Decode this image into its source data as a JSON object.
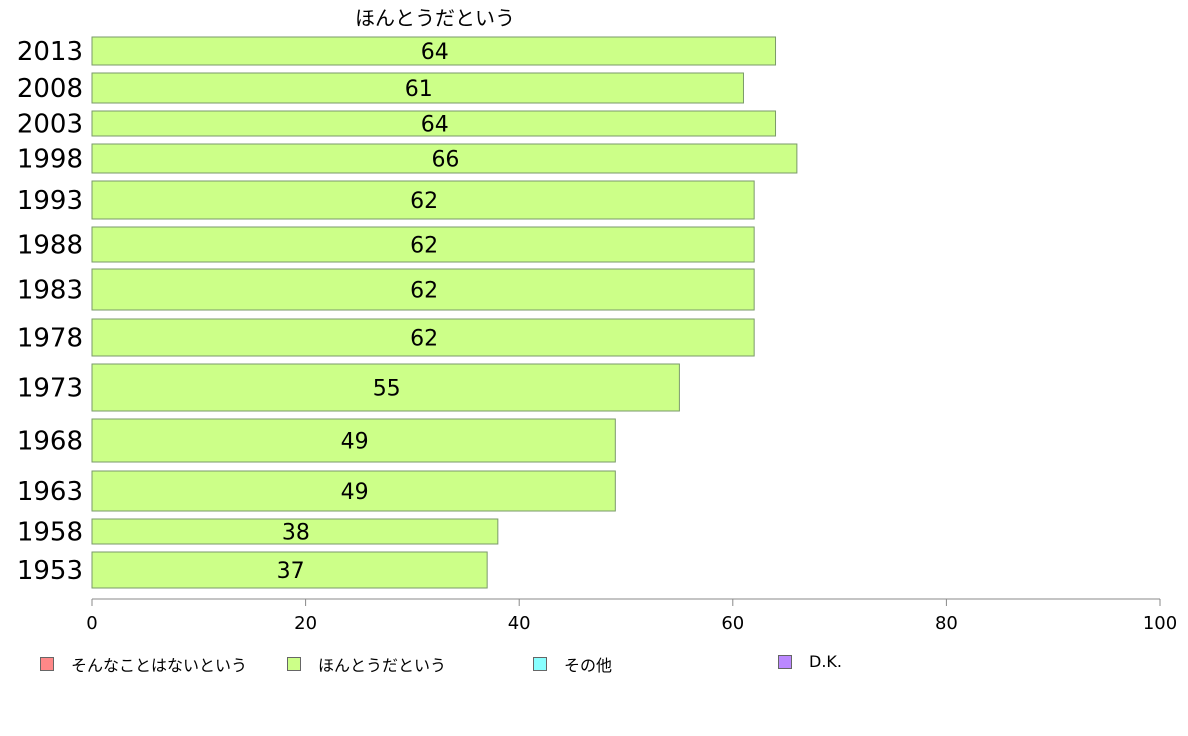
{
  "chart_data": {
    "type": "bar",
    "orientation": "horizontal",
    "title": "ほんとうだという",
    "categories": [
      "2013",
      "2008",
      "2003",
      "1998",
      "1993",
      "1988",
      "1983",
      "1978",
      "1973",
      "1968",
      "1963",
      "1958",
      "1953"
    ],
    "series": [
      {
        "name": "ほんとうだという",
        "color": "#ccff88",
        "values": [
          64,
          61,
          64,
          66,
          62,
          62,
          62,
          62,
          55,
          49,
          49,
          38,
          37
        ]
      }
    ],
    "xlim": [
      0,
      100
    ],
    "xticks": [
      "0",
      "20",
      "40",
      "60",
      "80",
      "100"
    ],
    "xlabel": "",
    "ylabel": "",
    "grid": false,
    "legend_position": "bottom"
  },
  "legend": [
    {
      "label": "そんなことはないという",
      "color": "#ff8888"
    },
    {
      "label": "ほんとうだという",
      "color": "#ccff88"
    },
    {
      "label": "その他",
      "color": "#88ffff"
    },
    {
      "label": "D.K.",
      "color": "#bb88ff"
    }
  ]
}
